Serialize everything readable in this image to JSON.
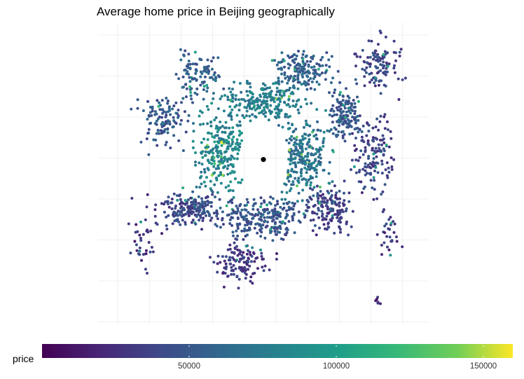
{
  "chart_data": {
    "type": "scatter",
    "title": "Average home price in Beijing geographically",
    "xlabel": "",
    "ylabel": "",
    "grid": true,
    "axis_tick_labels": false,
    "x_grid_count": 10,
    "y_grid_count": 8,
    "color_by": "price",
    "colormap": "viridis",
    "legend": {
      "title": "price",
      "position": "bottom",
      "ticks": [
        "50000",
        "100000",
        "150000"
      ],
      "range": [
        0,
        160000
      ]
    },
    "colors": {
      "highlight_point": "#000000",
      "grid": "#ebebeb"
    },
    "highlight_point": {
      "x": 0.5,
      "y": 0.455
    },
    "notes": "Approximately 2000 neighborhood points; x/y are relative map positions (0–1), prices estimated from colour. Dense central ring with higher prices around the centre, lower prices toward the periphery.",
    "clusters": [
      {
        "cx": 0.5,
        "cy": 0.44,
        "rx": 0.09,
        "ry": 0.09,
        "n": 0,
        "price": 100000
      },
      {
        "cx": 0.37,
        "cy": 0.43,
        "rx": 0.09,
        "ry": 0.16,
        "n": 260,
        "price": 85000
      },
      {
        "cx": 0.62,
        "cy": 0.45,
        "rx": 0.1,
        "ry": 0.16,
        "n": 280,
        "price": 72000
      },
      {
        "cx": 0.5,
        "cy": 0.26,
        "rx": 0.16,
        "ry": 0.08,
        "n": 240,
        "price": 80000
      },
      {
        "cx": 0.5,
        "cy": 0.65,
        "rx": 0.17,
        "ry": 0.08,
        "n": 260,
        "price": 52000
      },
      {
        "cx": 0.62,
        "cy": 0.16,
        "rx": 0.1,
        "ry": 0.08,
        "n": 160,
        "price": 60000
      },
      {
        "cx": 0.85,
        "cy": 0.14,
        "rx": 0.08,
        "ry": 0.1,
        "n": 110,
        "price": 45000
      },
      {
        "cx": 0.83,
        "cy": 0.45,
        "rx": 0.08,
        "ry": 0.16,
        "n": 140,
        "price": 42000
      },
      {
        "cx": 0.75,
        "cy": 0.3,
        "rx": 0.07,
        "ry": 0.1,
        "n": 140,
        "price": 55000
      },
      {
        "cx": 0.2,
        "cy": 0.33,
        "rx": 0.09,
        "ry": 0.12,
        "n": 110,
        "price": 55000
      },
      {
        "cx": 0.3,
        "cy": 0.18,
        "rx": 0.08,
        "ry": 0.09,
        "n": 100,
        "price": 60000
      },
      {
        "cx": 0.28,
        "cy": 0.62,
        "rx": 0.1,
        "ry": 0.07,
        "n": 180,
        "price": 45000
      },
      {
        "cx": 0.43,
        "cy": 0.8,
        "rx": 0.1,
        "ry": 0.08,
        "n": 120,
        "price": 38000
      },
      {
        "cx": 0.7,
        "cy": 0.62,
        "rx": 0.09,
        "ry": 0.1,
        "n": 150,
        "price": 40000
      },
      {
        "cx": 0.14,
        "cy": 0.72,
        "rx": 0.06,
        "ry": 0.14,
        "n": 40,
        "price": 35000
      },
      {
        "cx": 0.88,
        "cy": 0.7,
        "rx": 0.04,
        "ry": 0.1,
        "n": 30,
        "price": 38000
      },
      {
        "cx": 0.85,
        "cy": 0.92,
        "rx": 0.02,
        "ry": 0.02,
        "n": 6,
        "price": 28000
      }
    ]
  }
}
